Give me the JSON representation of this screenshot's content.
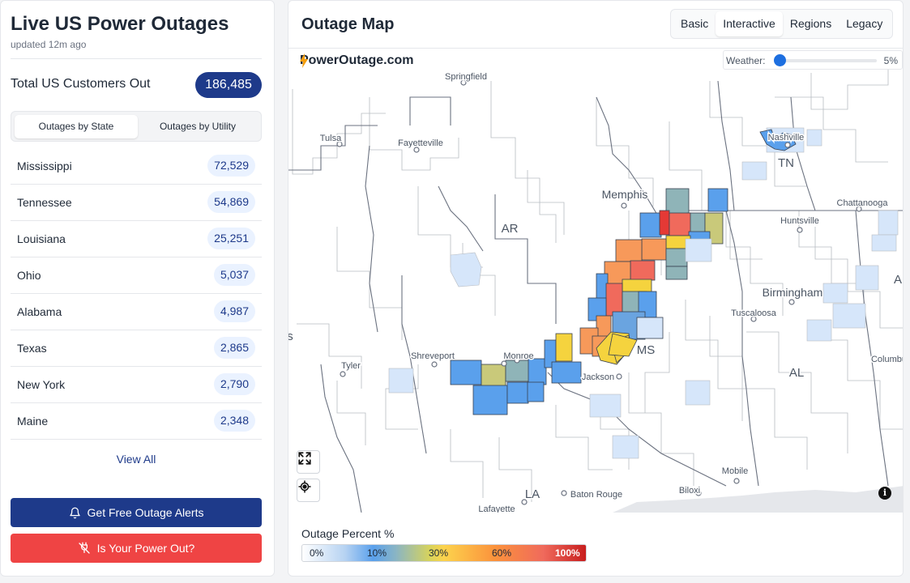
{
  "app": {
    "title": "Live US Power Outages",
    "updated": "updated 12m ago"
  },
  "total": {
    "label": "Total US Customers Out",
    "value": "186,485"
  },
  "toggle": {
    "by_state": "Outages by State",
    "by_utility": "Outages by Utility",
    "active": "by_state"
  },
  "states": [
    {
      "name": "Mississippi",
      "count": "72,529"
    },
    {
      "name": "Tennessee",
      "count": "54,869"
    },
    {
      "name": "Louisiana",
      "count": "25,251"
    },
    {
      "name": "Ohio",
      "count": "5,037"
    },
    {
      "name": "Alabama",
      "count": "4,987"
    },
    {
      "name": "Texas",
      "count": "2,865"
    },
    {
      "name": "New York",
      "count": "2,790"
    },
    {
      "name": "Maine",
      "count": "2,348"
    }
  ],
  "view_all": "View All",
  "buttons": {
    "alerts": "Get Free Outage Alerts",
    "power_out": "Is Your Power Out?"
  },
  "map": {
    "title": "Outage Map",
    "modes": [
      "Basic",
      "Interactive",
      "Regions",
      "Legacy"
    ],
    "active_mode": "Interactive",
    "brand": "PowerOutage.com",
    "weather_label": "Weather:",
    "weather_value": "5%",
    "weather_level": 0.05,
    "places": {
      "springfield": "Springfield",
      "tulsa": "Tulsa",
      "fayetteville": "Fayetteville",
      "nashville": "Nashville",
      "tn": "TN",
      "memphis": "Memphis",
      "chattanooga": "Chattanooga",
      "ar": "AR",
      "huntsville": "Huntsville",
      "birmingham": "Birmingham",
      "tuscaloosa": "Tuscaloosa",
      "a_cut": "A",
      "ms": "MS",
      "shreveport": "Shreveport",
      "monroe": "Monroe",
      "tyler": "Tyler",
      "jackson": "Jackson",
      "columbus": "Columbu",
      "al": "AL",
      "s_cut": "s",
      "mobile": "Mobile",
      "la": "LA",
      "baton_rouge": "Baton Rouge",
      "biloxi": "Biloxi",
      "lafayette": "Lafayette"
    }
  },
  "legend": {
    "title": "Outage Percent %",
    "ticks": [
      "0%",
      "10%",
      "30%",
      "60%",
      "100%"
    ]
  },
  "colors": {
    "navy": "#1e3a8a",
    "red": "#ef4444",
    "badge_bg": "#eaf2ff",
    "blue_county": "#5aa0ec",
    "light_county": "#d6e6fa",
    "teal_county": "#8fb4b8",
    "olive_county": "#c9c97a",
    "yellow_county": "#f5d33e",
    "orange_county": "#f7995a",
    "salmon_county": "#f06a5c",
    "red_county": "#e53935"
  },
  "icons": {
    "bell": "bell-icon",
    "no_power": "power-off-icon",
    "bolt": "bolt-icon",
    "expand": "fullscreen-icon",
    "locate": "locate-icon",
    "info": "info-icon"
  }
}
